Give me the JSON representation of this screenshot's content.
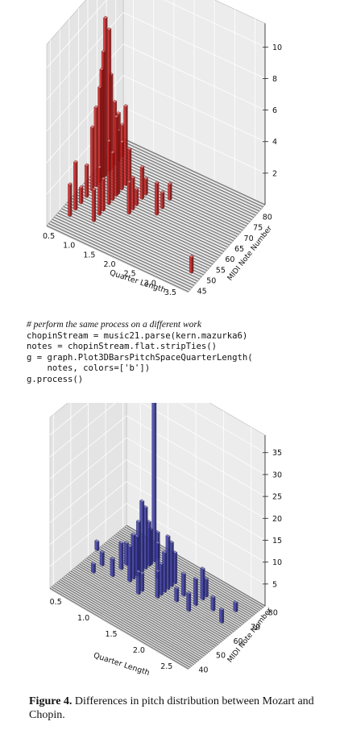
{
  "chart_data": [
    {
      "type": "bar3d",
      "bar_color": "#cc2222",
      "x_label": "Quarter Length",
      "y_label": "MIDI Note Number",
      "x_ticks": [
        "0.5",
        "1.0",
        "1.5",
        "2.0",
        "2.5",
        "3.0",
        "3.5"
      ],
      "y_ticks": [
        "45",
        "50",
        "55",
        "60",
        "65",
        "70",
        "75",
        "80"
      ],
      "z_ticks": [
        "2",
        "4",
        "6",
        "8",
        "10"
      ],
      "x_range": [
        0.25,
        3.75
      ],
      "y_range": [
        43,
        84
      ],
      "z_range": [
        0,
        11.5
      ],
      "bars": [
        {
          "x": 0.5,
          "y": 50,
          "z": 2
        },
        {
          "x": 0.5,
          "y": 53,
          "z": 3
        },
        {
          "x": 0.5,
          "y": 56,
          "z": 1
        },
        {
          "x": 0.5,
          "y": 59,
          "z": 2
        },
        {
          "x": 0.5,
          "y": 62,
          "z": 4
        },
        {
          "x": 0.5,
          "y": 64,
          "z": 5
        },
        {
          "x": 0.5,
          "y": 66,
          "z": 6
        },
        {
          "x": 0.5,
          "y": 67,
          "z": 7
        },
        {
          "x": 0.5,
          "y": 68,
          "z": 8
        },
        {
          "x": 0.5,
          "y": 69,
          "z": 10
        },
        {
          "x": 0.5,
          "y": 71,
          "z": 9
        },
        {
          "x": 0.5,
          "y": 72,
          "z": 6
        },
        {
          "x": 0.5,
          "y": 74,
          "z": 4
        },
        {
          "x": 0.5,
          "y": 76,
          "z": 3
        },
        {
          "x": 0.5,
          "y": 78,
          "z": 2
        },
        {
          "x": 1.0,
          "y": 52,
          "z": 2
        },
        {
          "x": 1.0,
          "y": 55,
          "z": 3
        },
        {
          "x": 1.0,
          "y": 57,
          "z": 2
        },
        {
          "x": 1.0,
          "y": 60,
          "z": 4
        },
        {
          "x": 1.0,
          "y": 62,
          "z": 3
        },
        {
          "x": 1.0,
          "y": 64,
          "z": 5
        },
        {
          "x": 1.0,
          "y": 65,
          "z": 4
        },
        {
          "x": 1.0,
          "y": 67,
          "z": 3
        },
        {
          "x": 1.0,
          "y": 69,
          "z": 5
        },
        {
          "x": 1.0,
          "y": 71,
          "z": 2
        },
        {
          "x": 1.5,
          "y": 60,
          "z": 2
        },
        {
          "x": 1.5,
          "y": 62,
          "z": 2
        },
        {
          "x": 1.5,
          "y": 64,
          "z": 1
        },
        {
          "x": 1.5,
          "y": 67,
          "z": 2
        },
        {
          "x": 1.5,
          "y": 69,
          "z": 1
        },
        {
          "x": 2.0,
          "y": 64,
          "z": 2
        },
        {
          "x": 2.0,
          "y": 67,
          "z": 1
        },
        {
          "x": 2.0,
          "y": 71,
          "z": 1
        },
        {
          "x": 3.5,
          "y": 50,
          "z": 1
        }
      ]
    },
    {
      "type": "bar3d",
      "bar_color": "#3c3ca6",
      "x_label": "Quarter Length",
      "y_label": "MIDI Note Number",
      "x_ticks": [
        "0.5",
        "1.0",
        "1.5",
        "2.0",
        "2.5"
      ],
      "y_ticks": [
        "40",
        "50",
        "60",
        "70",
        "80"
      ],
      "z_ticks": [
        "5",
        "10",
        "15",
        "20",
        "25",
        "30",
        "35"
      ],
      "x_range": [
        0.25,
        2.75
      ],
      "y_range": [
        38,
        82
      ],
      "z_range": [
        0,
        39
      ],
      "bars": [
        {
          "x": 0.25,
          "y": 65,
          "z": 2
        },
        {
          "x": 0.5,
          "y": 60,
          "z": 3
        },
        {
          "x": 0.5,
          "y": 55,
          "z": 2
        },
        {
          "x": 0.75,
          "y": 63,
          "z": 6
        },
        {
          "x": 0.75,
          "y": 58,
          "z": 4
        },
        {
          "x": 0.75,
          "y": 66,
          "z": 5
        },
        {
          "x": 1.0,
          "y": 60,
          "z": 8
        },
        {
          "x": 1.0,
          "y": 62,
          "z": 10
        },
        {
          "x": 1.0,
          "y": 64,
          "z": 9
        },
        {
          "x": 1.0,
          "y": 65,
          "z": 12
        },
        {
          "x": 1.0,
          "y": 67,
          "z": 16
        },
        {
          "x": 1.0,
          "y": 69,
          "z": 14
        },
        {
          "x": 1.0,
          "y": 71,
          "z": 10
        },
        {
          "x": 1.0,
          "y": 72,
          "z": 8
        },
        {
          "x": 1.0,
          "y": 74,
          "z": 38
        },
        {
          "x": 1.0,
          "y": 76,
          "z": 6
        },
        {
          "x": 1.25,
          "y": 57,
          "z": 5
        },
        {
          "x": 1.25,
          "y": 59,
          "z": 4
        },
        {
          "x": 1.25,
          "y": 68,
          "z": 8
        },
        {
          "x": 1.5,
          "y": 60,
          "z": 6
        },
        {
          "x": 1.5,
          "y": 62,
          "z": 7
        },
        {
          "x": 1.5,
          "y": 64,
          "z": 9
        },
        {
          "x": 1.5,
          "y": 66,
          "z": 12
        },
        {
          "x": 1.5,
          "y": 68,
          "z": 10
        },
        {
          "x": 1.5,
          "y": 70,
          "z": 7
        },
        {
          "x": 1.75,
          "y": 63,
          "z": 3
        },
        {
          "x": 1.75,
          "y": 67,
          "z": 5
        },
        {
          "x": 2.0,
          "y": 62,
          "z": 4
        },
        {
          "x": 2.0,
          "y": 66,
          "z": 6
        },
        {
          "x": 2.0,
          "y": 70,
          "z": 7
        },
        {
          "x": 2.0,
          "y": 72,
          "z": 4
        },
        {
          "x": 2.25,
          "y": 68,
          "z": 3
        },
        {
          "x": 2.5,
          "y": 73,
          "z": 2
        },
        {
          "x": 2.5,
          "y": 65,
          "z": 3
        }
      ]
    }
  ],
  "code": {
    "comment": "# perform the same process on a different work",
    "lines": [
      "chopinStream = music21.parse(kern.mazurka6)",
      "notes = chopinStream.flat.stripTies()",
      "g = graph.Plot3DBarsPitchSpaceQuarterLength(",
      "    notes, colors=['b'])",
      "g.process()"
    ]
  },
  "caption": {
    "label": "Figure 4.",
    "text": " Differences in pitch distribution between Mozart and Chopin."
  }
}
